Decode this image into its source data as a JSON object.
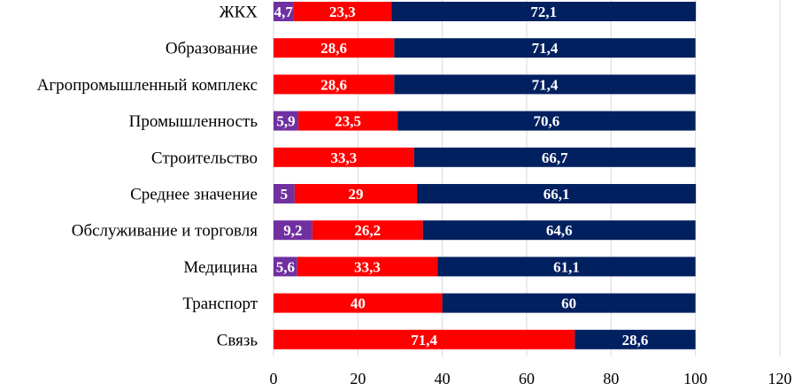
{
  "chart_data": {
    "type": "bar",
    "orientation": "horizontal",
    "stacked": true,
    "categories": [
      "ЖКХ",
      "Образование",
      "Агропромышленный комплекс",
      "Промышленность",
      "Строительство",
      "Среднее значение",
      "Обслуживание и торговля",
      "Медицина",
      "Транспорт",
      "Связь"
    ],
    "series": [
      {
        "color": "#7030a0",
        "values": [
          4.7,
          null,
          null,
          5.9,
          null,
          5,
          9.2,
          5.6,
          null,
          null
        ]
      },
      {
        "color": "#ff0000",
        "values": [
          23.3,
          28.6,
          28.6,
          23.5,
          33.3,
          29,
          26.2,
          33.3,
          40,
          71.4
        ]
      },
      {
        "color": "#002060",
        "values": [
          72.1,
          71.4,
          71.4,
          70.6,
          66.7,
          66.1,
          64.6,
          61.1,
          60,
          28.6
        ]
      }
    ],
    "data_labels": [
      [
        "4,7",
        "",
        "",
        "5,9",
        "",
        "5",
        "9,2",
        "5,6",
        "",
        ""
      ],
      [
        "23,3",
        "28,6",
        "28,6",
        "23,5",
        "33,3",
        "29",
        "26,2",
        "33,3",
        "40",
        "71,4"
      ],
      [
        "72,1",
        "71,4",
        "71,4",
        "70,6",
        "66,7",
        "66,1",
        "64,6",
        "61,1",
        "60",
        "28,6"
      ]
    ],
    "x_ticks": [
      0,
      20,
      40,
      60,
      80,
      100,
      120
    ],
    "x_tick_labels": [
      "0",
      "20",
      "40",
      "60",
      "80",
      "100",
      "120"
    ],
    "xlim": [
      0,
      120
    ],
    "grid": true,
    "legend": "none",
    "title": "",
    "xlabel": "",
    "ylabel": ""
  }
}
